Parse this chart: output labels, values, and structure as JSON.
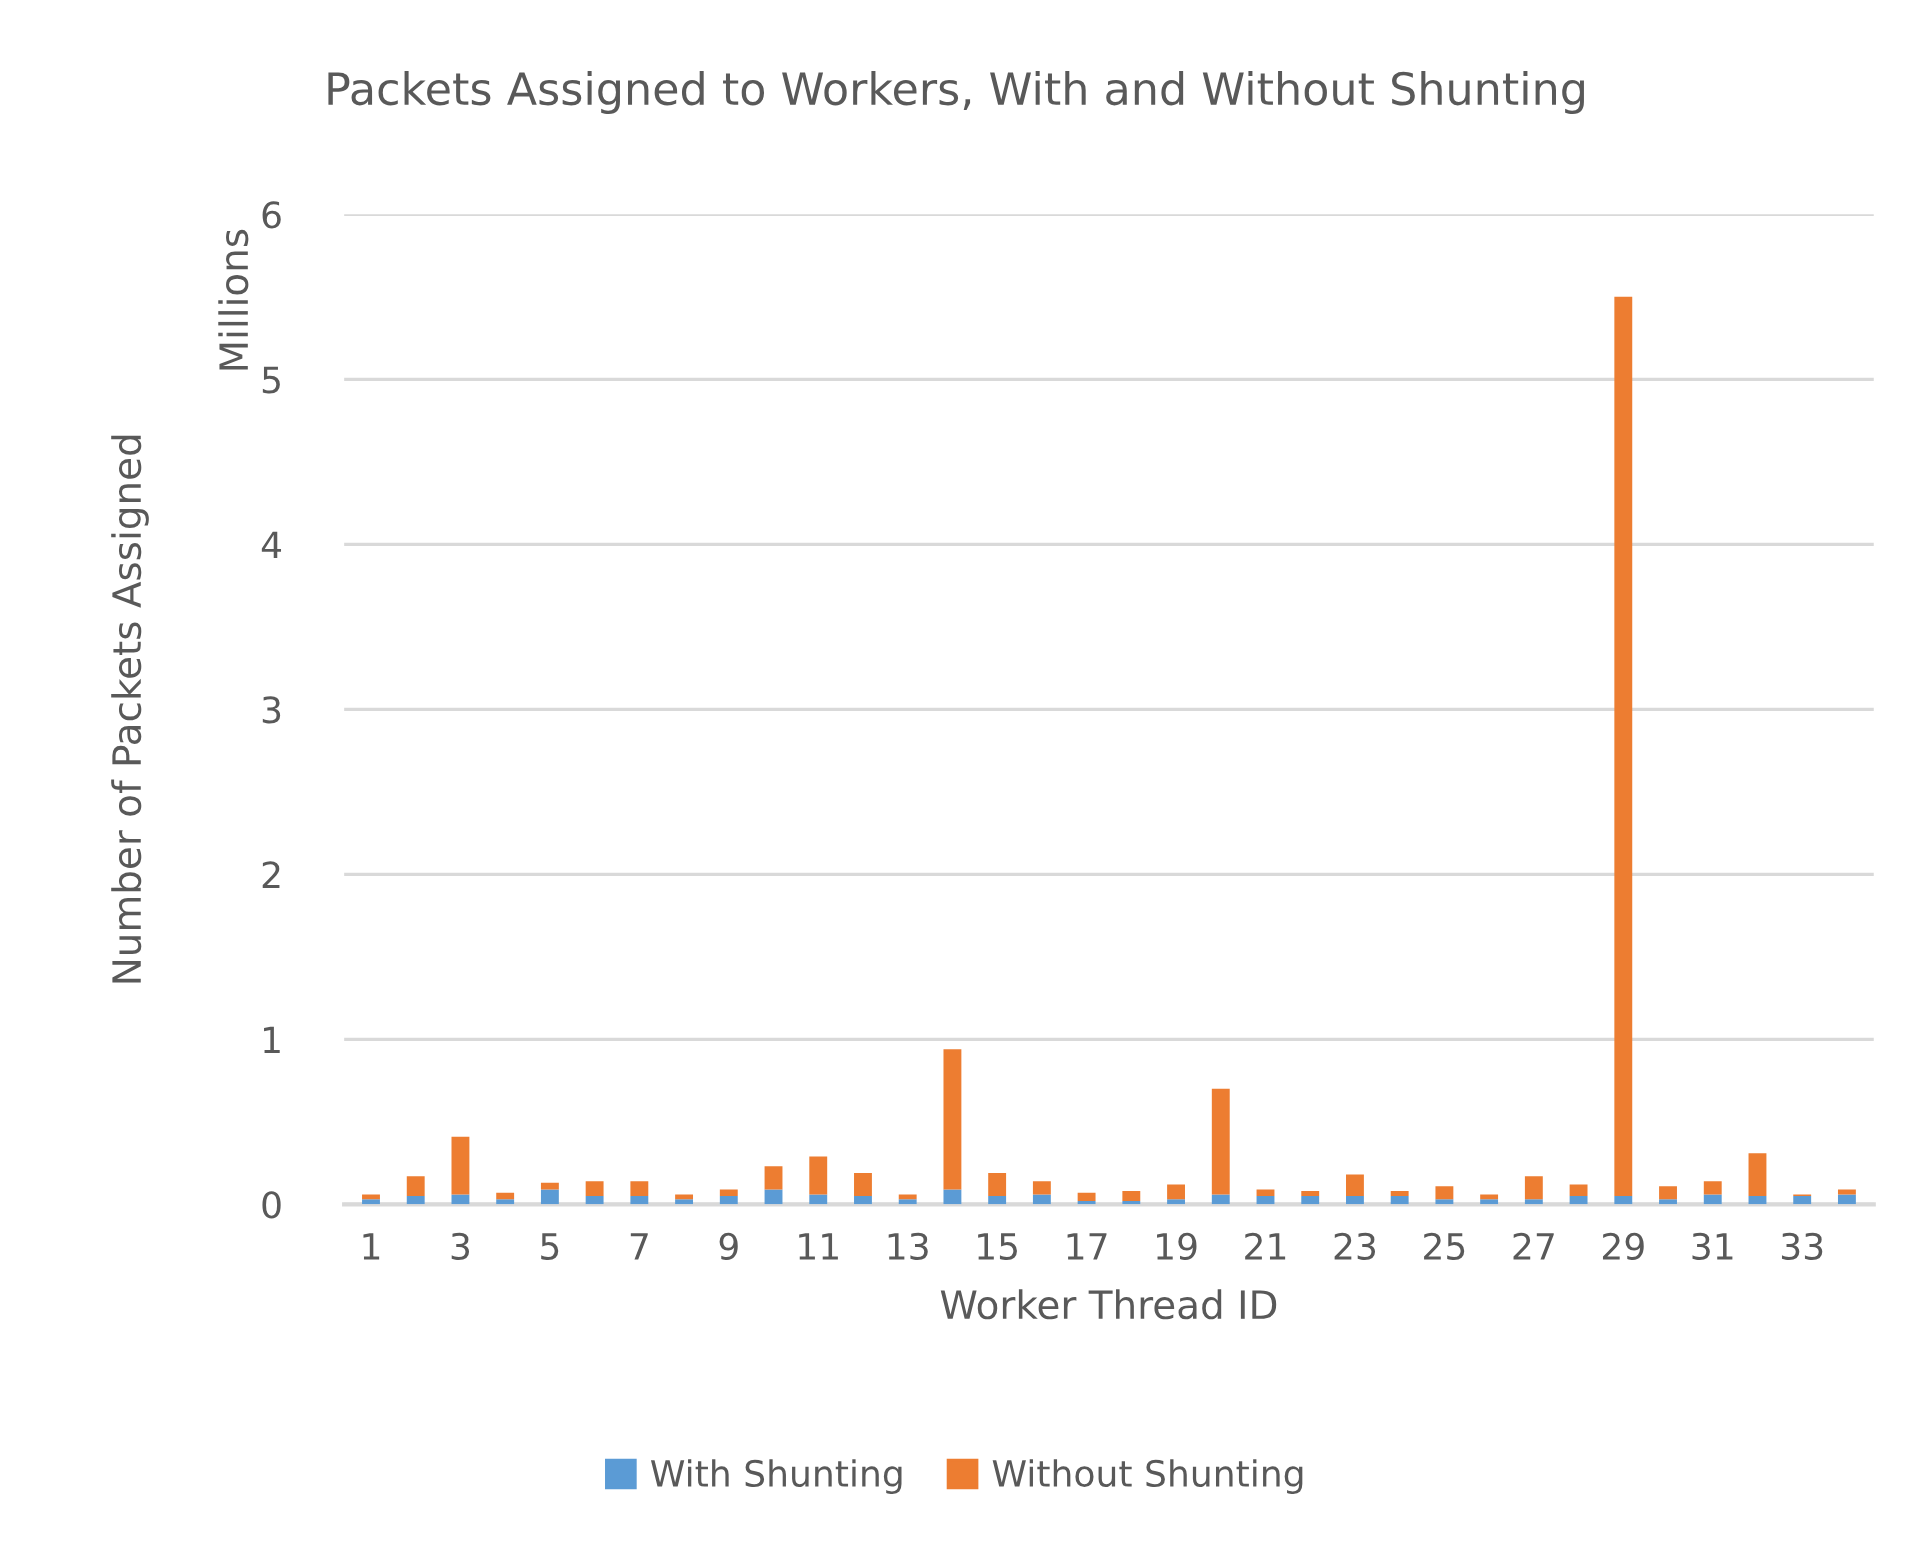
{
  "chart_data": {
    "type": "bar",
    "title": "Packets Assigned to Workers, With and Without Shunting",
    "xlabel": "Worker Thread ID",
    "ylabel": "Number of Packets Assigned",
    "annotations": [
      "Millions"
    ],
    "categories": [
      "1",
      null,
      "3",
      null,
      "5",
      null,
      "7",
      null,
      "9",
      null,
      "11",
      null,
      "13",
      null,
      "15",
      null,
      "17",
      null,
      "19",
      null,
      "21",
      null,
      "23",
      null,
      "25",
      null,
      "27",
      null,
      "29",
      null,
      "31",
      null,
      "33",
      null
    ],
    "stacked": true,
    "series": [
      {
        "name": "With Shunting",
        "color": "#5b9bd5",
        "values": [
          0.03,
          0.05,
          0.06,
          0.03,
          0.09,
          0.05,
          0.05,
          0.03,
          0.05,
          0.09,
          0.06,
          0.05,
          0.03,
          0.09,
          0.05,
          0.06,
          0.02,
          0.02,
          0.03,
          0.06,
          0.05,
          0.05,
          0.05,
          0.05,
          0.03,
          0.03,
          0.03,
          0.05,
          0.05,
          0.03,
          0.06,
          0.05,
          0.05,
          0.06
        ]
      },
      {
        "name": "Without Shunting",
        "color": "#ed7d31",
        "values": [
          0.03,
          0.12,
          0.35,
          0.04,
          0.04,
          0.09,
          0.09,
          0.03,
          0.04,
          0.14,
          0.23,
          0.14,
          0.03,
          0.85,
          0.14,
          0.08,
          0.05,
          0.06,
          0.09,
          0.64,
          0.04,
          0.03,
          0.13,
          0.03,
          0.08,
          0.03,
          0.14,
          0.07,
          5.45,
          0.08,
          0.08,
          0.26,
          0.01,
          0.03
        ]
      }
    ],
    "ylim": [
      0,
      6
    ],
    "yticks": [
      0,
      1,
      2,
      3,
      4,
      5,
      6
    ],
    "grid": "y",
    "legend": "bottom"
  }
}
